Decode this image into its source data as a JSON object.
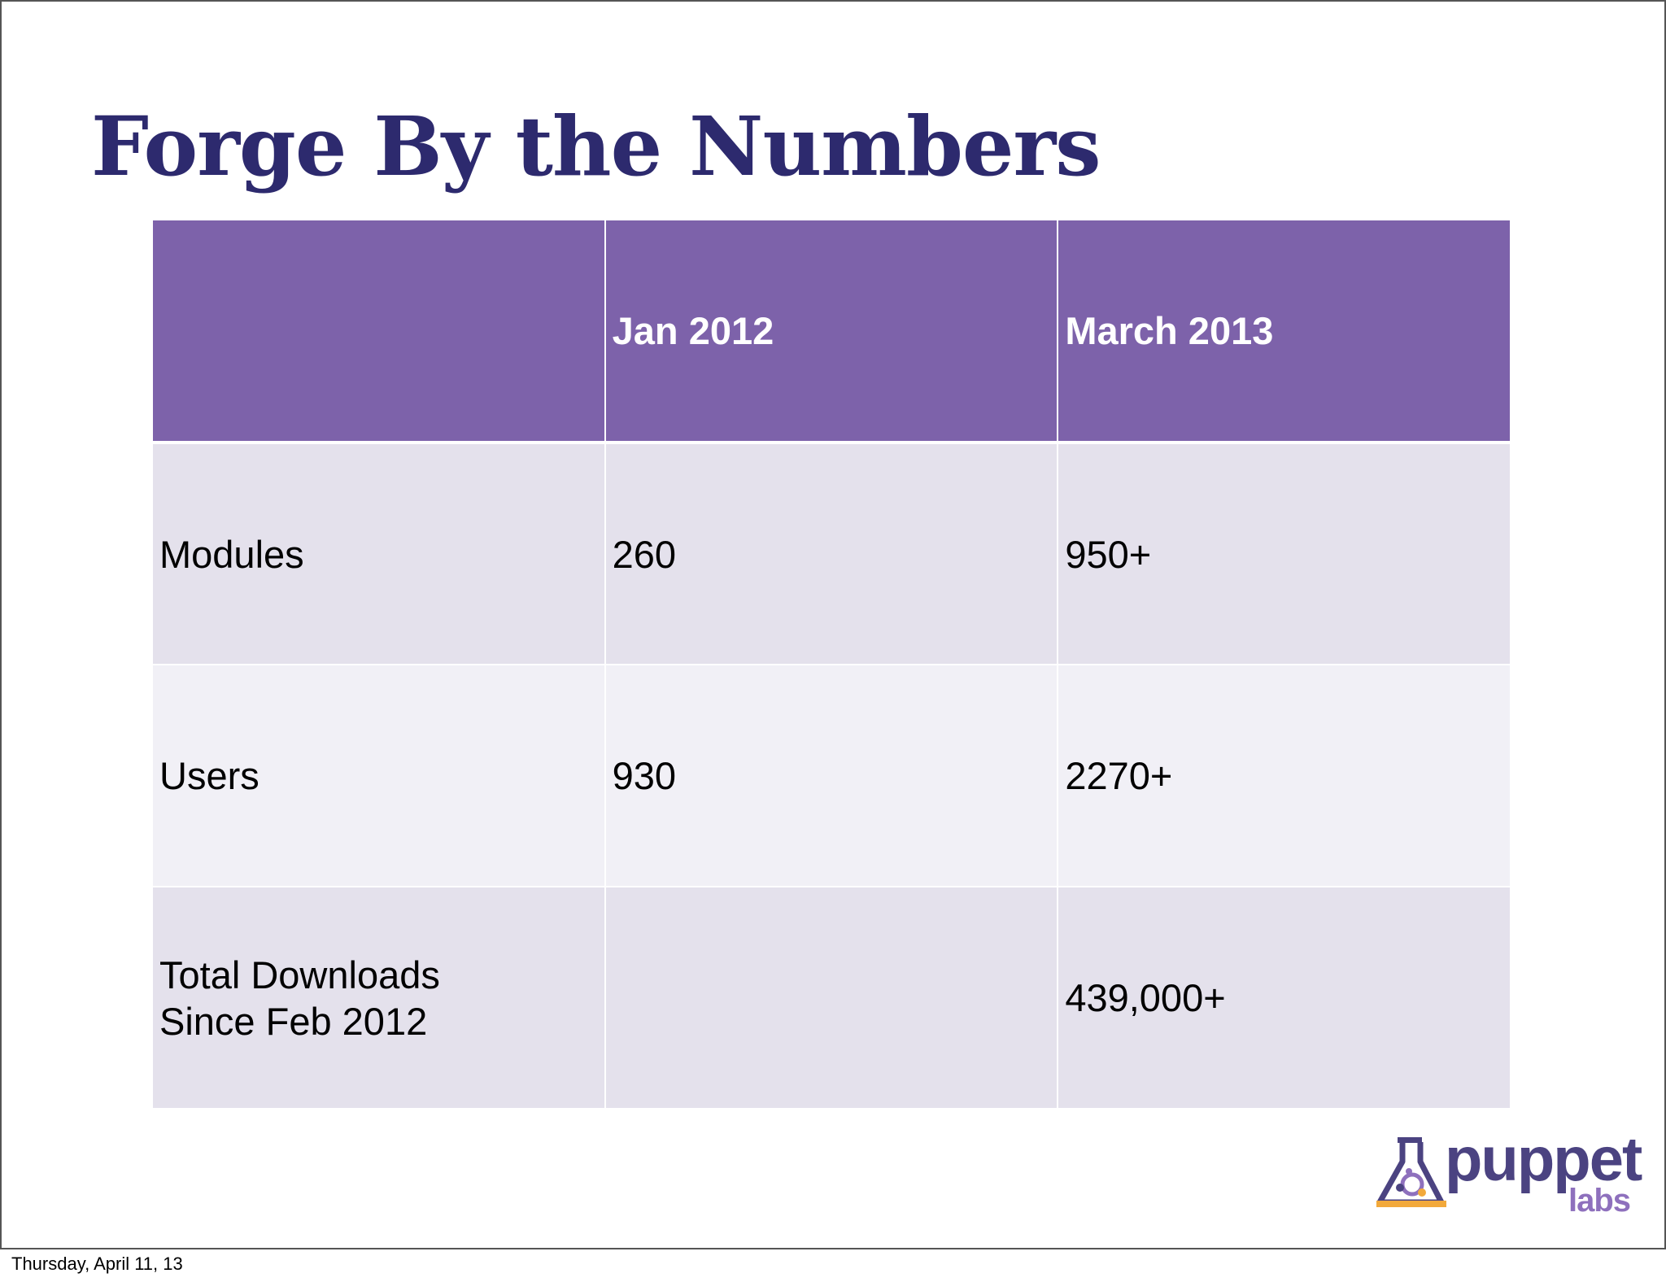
{
  "slide": {
    "title": "Forge By the Numbers"
  },
  "table": {
    "headers": [
      "",
      "Jan 2012",
      "March 2013"
    ],
    "rows": [
      {
        "label": "Modules",
        "jan_2012": "260",
        "march_2013": "950+"
      },
      {
        "label": "Users",
        "jan_2012": "930",
        "march_2013": "2270+"
      },
      {
        "label_line1": "Total Downloads",
        "label_line2": "Since Feb 2012",
        "jan_2012": "",
        "march_2013": "439,000+"
      }
    ]
  },
  "logo": {
    "word": "puppet",
    "sub": "labs",
    "icon": "flask-icon"
  },
  "footer": {
    "date": "Thursday, April 11, 13"
  },
  "colors": {
    "title": "#2d2a6e",
    "header_bg": "#7d62aa",
    "row_odd_bg": "#e4e1ec",
    "row_even_bg": "#f1f0f6",
    "logo_dark": "#4b4381",
    "logo_light": "#8e70bd",
    "logo_accent": "#f2a93b"
  }
}
